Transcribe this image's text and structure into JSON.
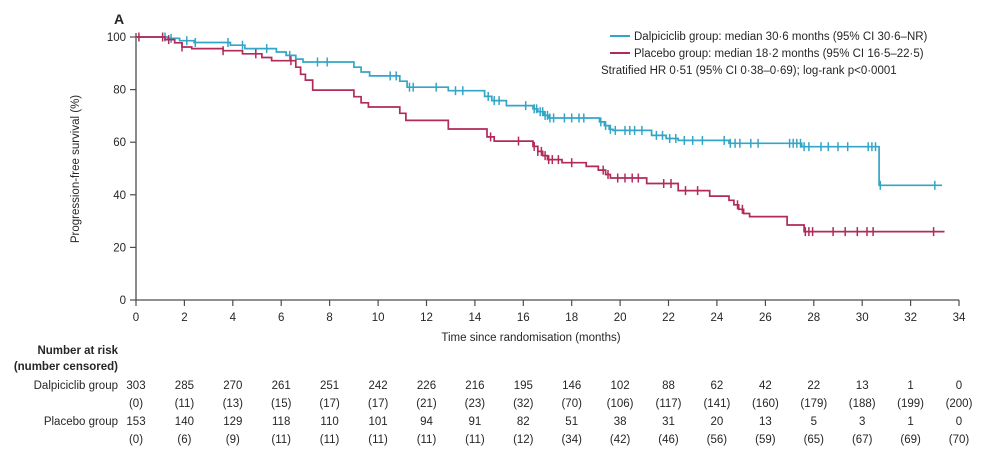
{
  "panel_label": "A",
  "colors": {
    "dalpiciclib": "#33A6C7",
    "placebo": "#B12A5B",
    "axis": "#4D4D4D",
    "text": "#262626"
  },
  "legend": {
    "entries": [
      {
        "name": "Dalpiciclib group",
        "label": "Dalpiciclib group: median 30·6 months (95% CI 30·6–NR)",
        "color": "#33A6C7"
      },
      {
        "name": "Placebo group",
        "label": "Placebo group: median 18·2 months (95% CI 16·5–22·5)",
        "color": "#B12A5B"
      }
    ],
    "note": "Stratified HR 0·51 (95% CI 0·38–0·69); log-rank p<0·0001"
  },
  "axes": {
    "x_label": "Time since randomisation (months)",
    "y_label": "Progression-free survival (%)",
    "x_ticks": [
      0,
      2,
      4,
      6,
      8,
      10,
      12,
      14,
      16,
      18,
      20,
      22,
      24,
      26,
      28,
      30,
      32,
      34
    ],
    "y_ticks": [
      0,
      20,
      40,
      60,
      80,
      100
    ],
    "x_range": [
      0,
      34
    ],
    "y_range": [
      0,
      100
    ],
    "grid": false,
    "legend_position": "top-right"
  },
  "chart_data": {
    "type": "line",
    "subtype": "kaplan_meier_step",
    "x_unit": "months",
    "y_unit": "percent_progression_free_survival",
    "series": [
      {
        "name": "Dalpiciclib group",
        "color": "#33A6C7",
        "steps": [
          [
            0,
            100
          ],
          [
            1.3,
            99.5
          ],
          [
            1.8,
            98.6
          ],
          [
            2.4,
            97.9
          ],
          [
            3.9,
            96.9
          ],
          [
            4.5,
            95.6
          ],
          [
            5.8,
            94.3
          ],
          [
            6.2,
            93.0
          ],
          [
            6.6,
            91.6
          ],
          [
            6.9,
            90.5
          ],
          [
            9.0,
            88.5
          ],
          [
            9.3,
            86.7
          ],
          [
            9.65,
            85.2
          ],
          [
            10.9,
            83.2
          ],
          [
            11.2,
            80.9
          ],
          [
            12.9,
            79.6
          ],
          [
            14.4,
            77.4
          ],
          [
            14.7,
            75.8
          ],
          [
            15.3,
            73.9
          ],
          [
            16.4,
            72.7
          ],
          [
            16.6,
            71.6
          ],
          [
            16.85,
            70.2
          ],
          [
            17.05,
            69.2
          ],
          [
            19.15,
            67.7
          ],
          [
            19.35,
            66.3
          ],
          [
            19.55,
            64.9
          ],
          [
            19.7,
            64.5
          ],
          [
            21.3,
            62.6
          ],
          [
            21.9,
            61.4
          ],
          [
            22.4,
            60.7
          ],
          [
            24.5,
            59.6
          ],
          [
            27.5,
            58.3
          ],
          [
            30.7,
            43.6
          ],
          [
            33.3,
            43.6
          ]
        ],
        "censor_times": [
          1.2,
          1.45,
          2.1,
          2.45,
          3.8,
          4.4,
          5.4,
          6.35,
          7.5,
          7.9,
          10.5,
          10.75,
          11.3,
          11.45,
          12.4,
          13.2,
          13.5,
          14.55,
          14.8,
          15.0,
          16.1,
          16.45,
          16.55,
          16.7,
          16.8,
          16.9,
          17.0,
          17.1,
          17.25,
          17.7,
          18.0,
          18.3,
          18.5,
          19.2,
          19.4,
          19.6,
          19.8,
          20.2,
          20.4,
          20.6,
          20.9,
          21.5,
          21.75,
          22.05,
          22.3,
          22.65,
          23.0,
          23.4,
          24.3,
          24.55,
          24.75,
          24.95,
          25.4,
          25.7,
          27.0,
          27.15,
          27.3,
          27.45,
          27.6,
          27.8,
          28.3,
          28.6,
          29.0,
          29.4,
          30.25,
          30.4,
          30.55,
          30.75,
          33.0
        ]
      },
      {
        "name": "Placebo group",
        "color": "#B12A5B",
        "steps": [
          [
            0,
            100
          ],
          [
            1.2,
            99.0
          ],
          [
            1.6,
            97.8
          ],
          [
            1.9,
            96.2
          ],
          [
            2.3,
            95.6
          ],
          [
            3.6,
            94.8
          ],
          [
            4.4,
            93.6
          ],
          [
            5.2,
            92.2
          ],
          [
            5.6,
            91.0
          ],
          [
            6.6,
            88.5
          ],
          [
            6.8,
            85.8
          ],
          [
            7.0,
            83.6
          ],
          [
            7.3,
            79.8
          ],
          [
            9.0,
            77.3
          ],
          [
            9.3,
            75.0
          ],
          [
            9.6,
            73.4
          ],
          [
            10.9,
            71.0
          ],
          [
            11.15,
            68.3
          ],
          [
            12.9,
            65.0
          ],
          [
            14.5,
            62.0
          ],
          [
            14.8,
            60.4
          ],
          [
            16.4,
            58.4
          ],
          [
            16.6,
            56.5
          ],
          [
            16.8,
            54.9
          ],
          [
            17.0,
            53.4
          ],
          [
            17.6,
            52.2
          ],
          [
            18.6,
            50.8
          ],
          [
            19.1,
            49.4
          ],
          [
            19.4,
            47.7
          ],
          [
            19.6,
            46.4
          ],
          [
            21.1,
            44.3
          ],
          [
            22.4,
            41.6
          ],
          [
            23.7,
            39.5
          ],
          [
            24.5,
            37.9
          ],
          [
            24.7,
            36.2
          ],
          [
            24.9,
            34.5
          ],
          [
            25.1,
            32.9
          ],
          [
            25.35,
            31.7
          ],
          [
            26.9,
            28.5
          ],
          [
            27.6,
            26.0
          ],
          [
            33.4,
            26.0
          ]
        ],
        "censor_times": [
          0.12,
          1.1,
          1.35,
          1.9,
          3.6,
          4.95,
          6.4,
          14.65,
          15.8,
          16.45,
          16.6,
          16.75,
          16.9,
          17.05,
          17.2,
          17.45,
          18.0,
          19.3,
          19.5,
          19.9,
          20.2,
          20.5,
          20.75,
          21.8,
          22.1,
          22.7,
          23.2,
          24.85,
          25.05,
          27.65,
          27.8,
          27.95,
          28.8,
          29.3,
          29.8,
          30.2,
          30.45,
          32.95
        ]
      }
    ]
  },
  "risk_table": {
    "title": "Number at risk",
    "subtitle": "(number censored)",
    "months": [
      0,
      2,
      4,
      6,
      8,
      10,
      12,
      14,
      16,
      18,
      20,
      22,
      24,
      26,
      28,
      30,
      32,
      34
    ],
    "rows": [
      {
        "label": "Dalpiciclib group",
        "at_risk": [
          303,
          285,
          270,
          261,
          251,
          242,
          226,
          216,
          195,
          146,
          102,
          88,
          62,
          42,
          22,
          13,
          1,
          0
        ],
        "censored": [
          "(0)",
          "(11)",
          "(13)",
          "(15)",
          "(17)",
          "(17)",
          "(21)",
          "(23)",
          "(32)",
          "(70)",
          "(106)",
          "(117)",
          "(141)",
          "(160)",
          "(179)",
          "(188)",
          "(199)",
          "(200)"
        ]
      },
      {
        "label": "Placebo group",
        "at_risk": [
          153,
          140,
          129,
          118,
          110,
          101,
          94,
          91,
          82,
          51,
          38,
          31,
          20,
          13,
          5,
          3,
          1,
          0
        ],
        "censored": [
          "(0)",
          "(6)",
          "(9)",
          "(11)",
          "(11)",
          "(11)",
          "(11)",
          "(11)",
          "(12)",
          "(34)",
          "(42)",
          "(46)",
          "(56)",
          "(59)",
          "(65)",
          "(67)",
          "(69)",
          "(70)"
        ]
      }
    ]
  }
}
